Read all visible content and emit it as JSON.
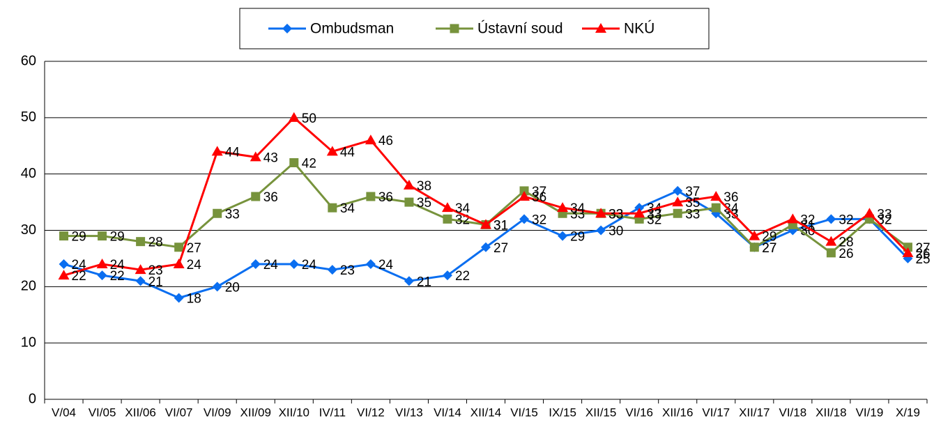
{
  "chart_data": {
    "type": "line",
    "categories": [
      "V/04",
      "VI/05",
      "XII/06",
      "VI/07",
      "VI/09",
      "XII/09",
      "XII/10",
      "IV/11",
      "VI/12",
      "VI/13",
      "VI/14",
      "XII/14",
      "VI/15",
      "IX/15",
      "XII/15",
      "VI/16",
      "XII/16",
      "VI/17",
      "XII/17",
      "VI/18",
      "XII/18",
      "VI/19",
      "X/19"
    ],
    "series": [
      {
        "name": "Ombudsman",
        "color": "#0a6ef0",
        "marker": "diamond",
        "values": [
          24,
          22,
          21,
          18,
          20,
          24,
          24,
          23,
          24,
          21,
          22,
          27,
          32,
          29,
          30,
          34,
          37,
          33,
          27,
          30,
          32,
          32,
          25
        ]
      },
      {
        "name": "Ústavní soud",
        "color": "#77933c",
        "marker": "square",
        "values": [
          29,
          29,
          28,
          27,
          33,
          36,
          42,
          34,
          36,
          35,
          32,
          31,
          37,
          33,
          33,
          32,
          33,
          34,
          27,
          31,
          26,
          32,
          27
        ]
      },
      {
        "name": "NKÚ",
        "color": "#ff0000",
        "marker": "triangle",
        "values": [
          22,
          24,
          23,
          24,
          44,
          43,
          50,
          44,
          46,
          38,
          34,
          31,
          36,
          34,
          33,
          33,
          35,
          36,
          29,
          32,
          28,
          33,
          26
        ]
      }
    ],
    "ylim": [
      0,
      60
    ],
    "yticks": [
      0,
      10,
      20,
      30,
      40,
      50,
      60
    ],
    "grid": true,
    "legend": "top"
  }
}
